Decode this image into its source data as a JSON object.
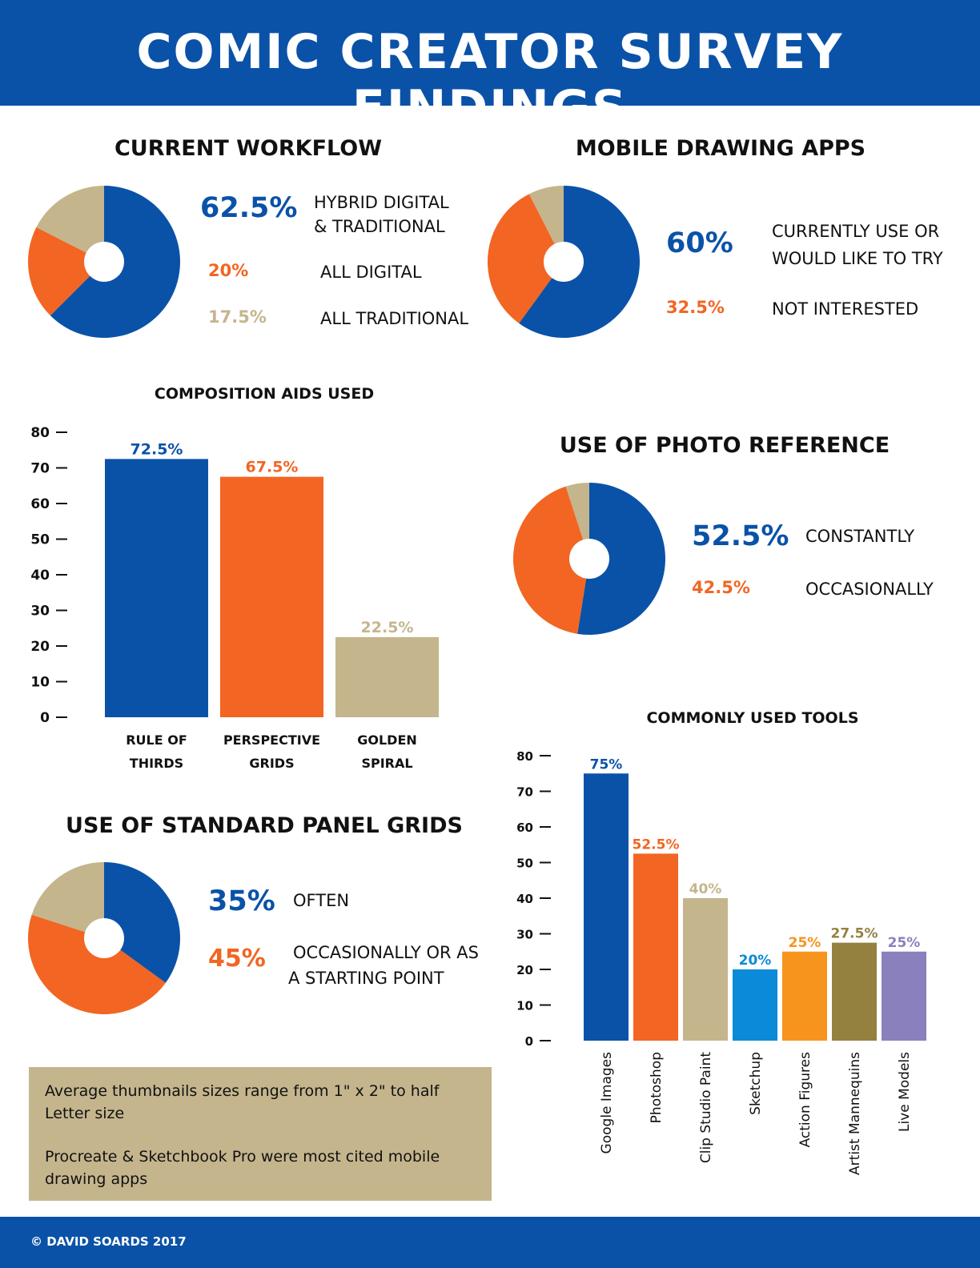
{
  "title": "COMIC CREATOR SURVEY FINDINGS",
  "footer": "© DAVID SOARDS 2017",
  "colors": {
    "blue": "#0a52a8",
    "orange": "#f26522",
    "tan": "#c4b58d",
    "white": "#ffffff"
  },
  "notes": [
    "Average thumbnails sizes range from 1\" x 2\" to half Letter size",
    "Procreate & Sketchbook Pro were most cited mobile drawing apps"
  ],
  "chart_data": [
    {
      "id": "workflow",
      "type": "pie",
      "title": "CURRENT WORKFLOW",
      "slices": [
        {
          "label": "HYBRID DIGITAL & TRADITIONAL",
          "value": 62.5,
          "display": "62.5%",
          "color": "#0a52a8"
        },
        {
          "label": "ALL DIGITAL",
          "value": 20,
          "display": "20%",
          "color": "#f26522"
        },
        {
          "label": "ALL TRADITIONAL",
          "value": 17.5,
          "display": "17.5%",
          "color": "#c4b58d"
        }
      ]
    },
    {
      "id": "mobile",
      "type": "pie",
      "title": "MOBILE DRAWING APPS",
      "slices": [
        {
          "label": "CURRENTLY USE OR WOULD LIKE TO TRY",
          "value": 60,
          "display": "60%",
          "color": "#0a52a8"
        },
        {
          "label": "NOT INTERESTED",
          "value": 32.5,
          "display": "32.5%",
          "color": "#f26522"
        },
        {
          "label": "",
          "value": 7.5,
          "display": "",
          "color": "#c4b58d"
        }
      ]
    },
    {
      "id": "composition",
      "type": "bar",
      "title": "COMPOSITION AIDS USED",
      "categories": [
        "RULE OF THIRDS",
        "PERSPECTIVE GRIDS",
        "GOLDEN SPIRAL"
      ],
      "values": [
        72.5,
        67.5,
        22.5
      ],
      "value_labels": [
        "72.5%",
        "67.5%",
        "22.5%"
      ],
      "colors": [
        "#0a52a8",
        "#f26522",
        "#c4b58d"
      ],
      "ylim": [
        0,
        80
      ],
      "yticks": [
        0,
        10,
        20,
        30,
        40,
        50,
        60,
        70,
        80
      ]
    },
    {
      "id": "photo",
      "type": "pie",
      "title": "USE OF PHOTO REFERENCE",
      "slices": [
        {
          "label": "CONSTANTLY",
          "value": 52.5,
          "display": "52.5%",
          "color": "#0a52a8"
        },
        {
          "label": "OCCASIONALLY",
          "value": 42.5,
          "display": "42.5%",
          "color": "#f26522"
        },
        {
          "label": "",
          "value": 5,
          "display": "",
          "color": "#c4b58d"
        }
      ]
    },
    {
      "id": "panels",
      "type": "pie",
      "title": "USE OF STANDARD PANEL GRIDS",
      "slices": [
        {
          "label": "OFTEN",
          "value": 35,
          "display": "35%",
          "color": "#0a52a8"
        },
        {
          "label": "OCCASIONALLY OR AS A STARTING POINT",
          "value": 45,
          "display": "45%",
          "color": "#f26522"
        },
        {
          "label": "",
          "value": 20,
          "display": "",
          "color": "#c4b58d"
        }
      ]
    },
    {
      "id": "tools",
      "type": "bar",
      "title": "COMMONLY USED TOOLS",
      "categories": [
        "Google Images",
        "Photoshop",
        "Clip Studio Paint",
        "Sketchup",
        "Action Figures",
        "Artist Mannequins",
        "Live Models"
      ],
      "values": [
        75,
        52.5,
        40,
        20,
        25,
        27.5,
        25
      ],
      "value_labels": [
        "75%",
        "52.5%",
        "40%",
        "20%",
        "25%",
        "27.5%",
        "25%"
      ],
      "colors": [
        "#0a52a8",
        "#f26522",
        "#c4b58d",
        "#0a8ad8",
        "#f7941d",
        "#948140",
        "#8a80bd"
      ],
      "ylim": [
        0,
        80
      ],
      "yticks": [
        0,
        10,
        20,
        30,
        40,
        50,
        60,
        70,
        80
      ]
    }
  ]
}
